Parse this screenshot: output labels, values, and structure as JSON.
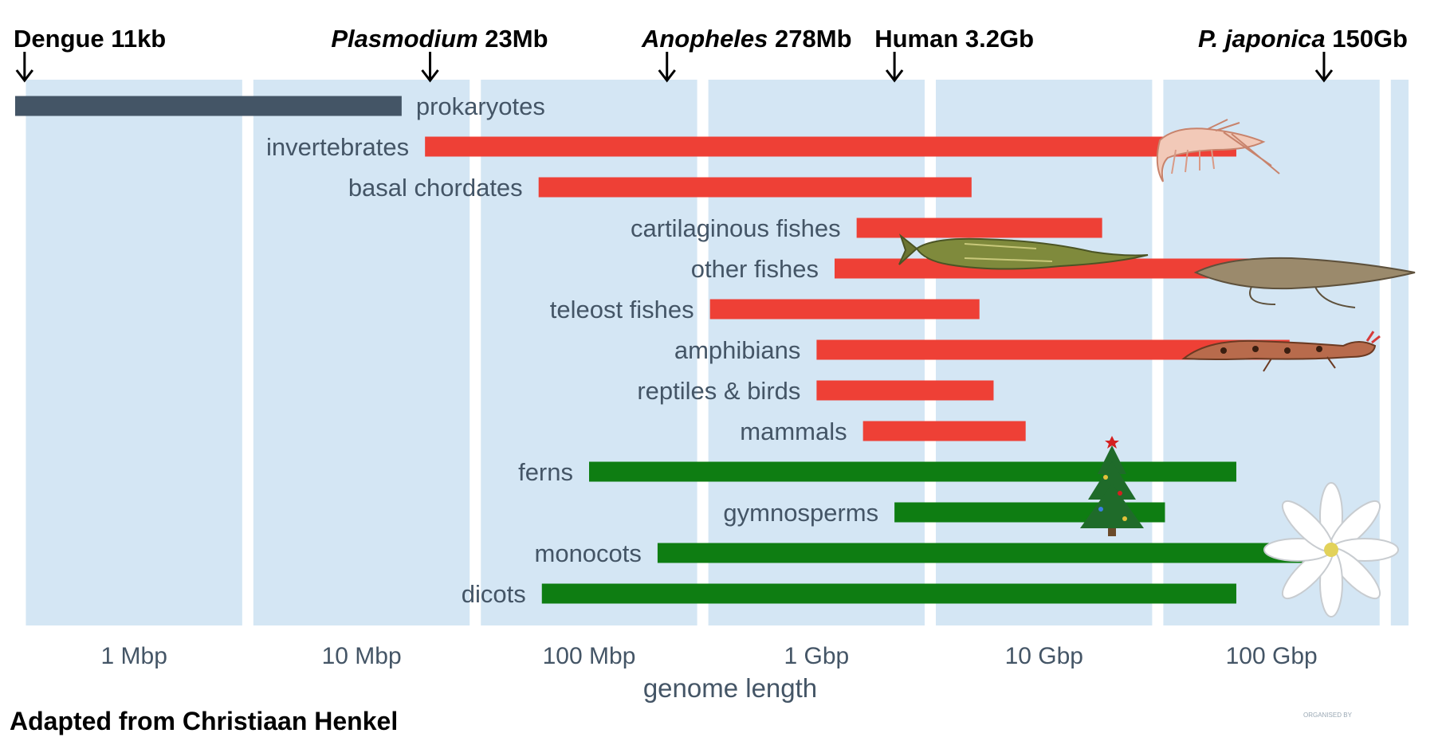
{
  "chart_data": {
    "type": "bar",
    "orientation": "horizontal-range",
    "xlabel": "genome length",
    "x_scale": "log",
    "x_unit": "bp",
    "xlim": [
      300000,
      400000000000
    ],
    "x_ticks": [
      {
        "value": 1000000,
        "label": "1 Mbp"
      },
      {
        "value": 10000000,
        "label": "10 Mbp"
      },
      {
        "value": 100000000,
        "label": "100 Mbp"
      },
      {
        "value": 1000000000,
        "label": "1 Gbp"
      },
      {
        "value": 10000000000,
        "label": "10 Gbp"
      },
      {
        "value": 100000000000,
        "label": "100 Gbp"
      }
    ],
    "grid": true,
    "series": [
      {
        "label": "prokaryotes",
        "min": 300000,
        "max": 15000000,
        "color": "#445566",
        "label_side": "right"
      },
      {
        "label": "invertebrates",
        "min": 19000000,
        "max": 70000000000,
        "color": "#ee4036",
        "label_side": "left"
      },
      {
        "label": "basal chordates",
        "min": 60000000,
        "max": 4800000000,
        "color": "#ee4036",
        "label_side": "left"
      },
      {
        "label": "cartilaginous fishes",
        "min": 1500000000,
        "max": 18000000000,
        "color": "#ee4036",
        "label_side": "left"
      },
      {
        "label": "other fishes",
        "min": 1200000000,
        "max": 130000000000,
        "color": "#ee4036",
        "label_side": "left"
      },
      {
        "label": "teleost fishes",
        "min": 340000000,
        "max": 5200000000,
        "color": "#ee4036",
        "label_side": "left"
      },
      {
        "label": "amphibians",
        "min": 1000000000,
        "max": 120000000000,
        "color": "#ee4036",
        "label_side": "left"
      },
      {
        "label": "reptiles & birds",
        "min": 1000000000,
        "max": 6000000000,
        "color": "#ee4036",
        "label_side": "left"
      },
      {
        "label": "mammals",
        "min": 1600000000,
        "max": 8300000000,
        "color": "#ee4036",
        "label_side": "left"
      },
      {
        "label": "ferns",
        "min": 100000000,
        "max": 70000000000,
        "color": "#0e7d12",
        "label_side": "left"
      },
      {
        "label": "gymnosperms",
        "min": 2200000000,
        "max": 34000000000,
        "color": "#0e7d12",
        "label_side": "left"
      },
      {
        "label": "monocots",
        "min": 200000000,
        "max": 150000000000,
        "color": "#0e7d12",
        "label_side": "left"
      },
      {
        "label": "dicots",
        "min": 62000000,
        "max": 70000000000,
        "color": "#0e7d12",
        "label_side": "left"
      }
    ],
    "annotations": [
      {
        "name": "Dengue",
        "size": "11kb",
        "italic": false,
        "value": 330000
      },
      {
        "name": "Plasmodium",
        "size": "23Mb",
        "italic": true,
        "value": 20000000
      },
      {
        "name": "Anopheles",
        "size": "278Mb",
        "italic": true,
        "value": 220000000
      },
      {
        "name": "Human",
        "size": "3.2Gb",
        "italic": false,
        "value": 2200000000
      },
      {
        "name": "P. japonica",
        "size": "150Gb",
        "italic": true,
        "value": 170000000000
      }
    ],
    "illustrations": [
      "shrimp",
      "sturgeon",
      "lungfish",
      "salamander",
      "christmas-tree",
      "flower"
    ]
  },
  "colors": {
    "band": "#d4e6f4",
    "prokaryote": "#445566",
    "animal": "#ee4036",
    "plant": "#0e7d12"
  },
  "footer": {
    "credit": "Adapted from Christiaan Henkel",
    "watermark": "ORGANISED BY"
  }
}
